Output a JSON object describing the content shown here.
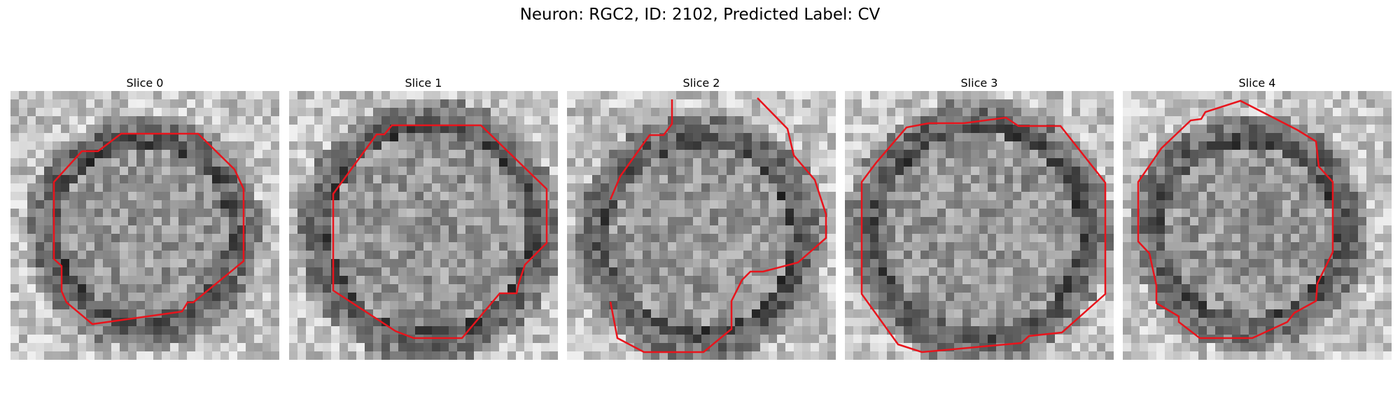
{
  "figure": {
    "suptitle": "Neuron: RGC2, ID: 2102, Predicted Label: CV"
  },
  "panels": [
    {
      "title": "Slice 0"
    },
    {
      "title": "Slice 1"
    },
    {
      "title": "Slice 2"
    },
    {
      "title": "Slice 3"
    },
    {
      "title": "Slice 4"
    }
  ],
  "colors": {
    "contour": "#e8141c",
    "background": "#ffffff"
  }
}
